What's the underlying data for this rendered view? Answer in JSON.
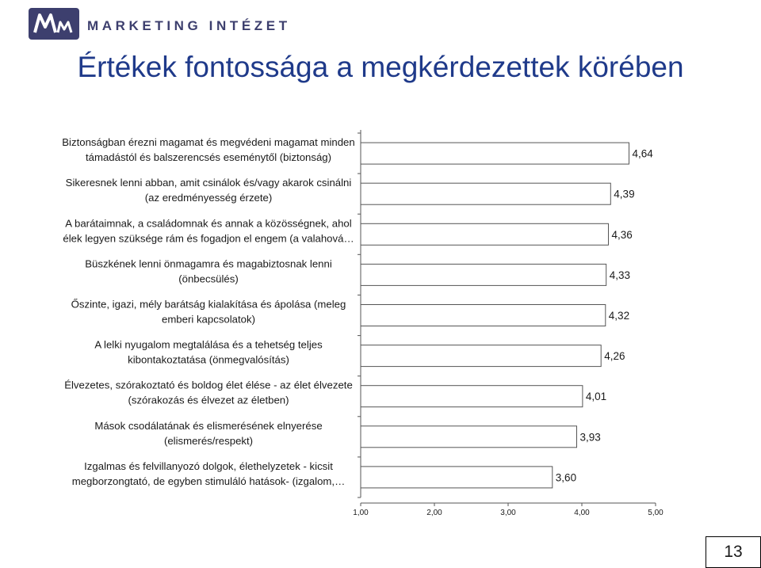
{
  "header": {
    "brand": "MARKETING INTÉZET"
  },
  "page_title": "Értékek fontossága a megkérdezettek körében",
  "page_number": "13",
  "chart_data": {
    "type": "bar",
    "orientation": "horizontal",
    "title": "",
    "xlabel": "",
    "ylabel": "",
    "xlim": [
      1,
      5
    ],
    "ticks": [
      "1,00",
      "2,00",
      "3,00",
      "4,00",
      "5,00"
    ],
    "grid": false,
    "legend": "none",
    "bar_color": "#ffffff",
    "categories": [
      [
        "Biztonságban érezni magamat és megvédeni magamat minden",
        "támadástól és balszerencsés eseménytől (biztonság)"
      ],
      [
        "Sikeresnek lenni abban, amit csinálok és/vagy akarok csinálni",
        "(az eredményesség érzete)"
      ],
      [
        "A barátaimnak, a családomnak és annak a közösségnek, ahol",
        "élek legyen szüksége rám és fogadjon el engem (a valahová…"
      ],
      [
        "Büszkének lenni önmagamra és magabiztosnak lenni",
        "(önbecsülés)"
      ],
      [
        "Őszinte, igazi, mély barátság kialakítása és ápolása (meleg",
        "emberi kapcsolatok)"
      ],
      [
        "A lelki nyugalom megtalálása és a tehetség teljes",
        "kibontakoztatása (önmegvalósítás)"
      ],
      [
        "Élvezetes, szórakoztató és boldog élet élése - az élet élvezete",
        "(szórakozás és élvezet az életben)"
      ],
      [
        "Mások csodálatának és elismerésének elnyerése",
        "(elismerés/respekt)"
      ],
      [
        "Izgalmas és felvillanyozó dolgok, élethelyzetek - kicsit",
        "megborzongtató, de egyben stimuláló hatások- (izgalom,…"
      ]
    ],
    "values": [
      4.64,
      4.39,
      4.36,
      4.33,
      4.32,
      4.26,
      4.01,
      3.93,
      3.6
    ],
    "value_labels": [
      "4,64",
      "4,39",
      "4,36",
      "4,33",
      "4,32",
      "4,26",
      "4,01",
      "3,93",
      "3,60"
    ]
  }
}
